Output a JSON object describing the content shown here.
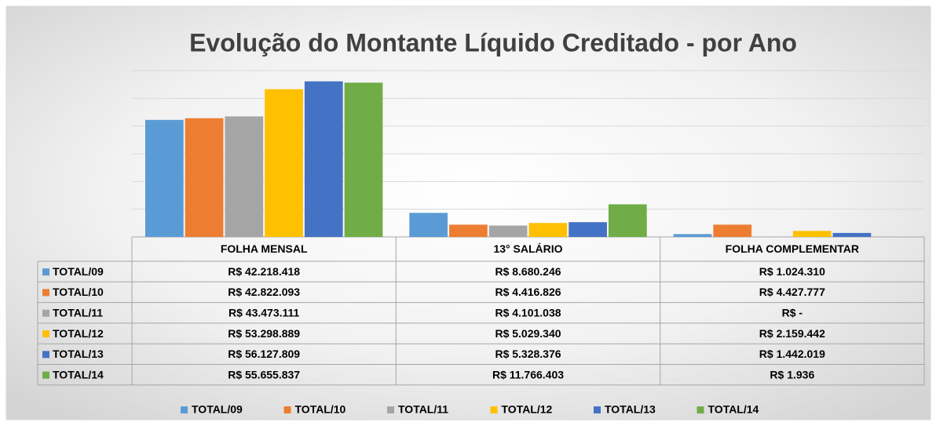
{
  "chart_data": {
    "type": "bar",
    "title": "Evolução do Montante Líquido Creditado - por Ano",
    "categories": [
      "FOLHA MENSAL",
      "13° SALÁRIO",
      "FOLHA COMPLEMENTAR"
    ],
    "ylim": [
      0,
      60000000
    ],
    "yticks": [
      0,
      10000000,
      20000000,
      30000000,
      40000000,
      50000000,
      60000000
    ],
    "grid": true,
    "legend": "bottom",
    "series": [
      {
        "name": "TOTAL/09",
        "color": "#5b9bd5",
        "values": [
          42218418,
          8680246,
          1024310
        ],
        "value_labels": [
          "R$ 42.218.418",
          "R$ 8.680.246",
          "R$ 1.024.310"
        ]
      },
      {
        "name": "TOTAL/10",
        "color": "#ed7d31",
        "values": [
          42822093,
          4416826,
          4427777
        ],
        "value_labels": [
          "R$ 42.822.093",
          "R$ 4.416.826",
          "R$ 4.427.777"
        ]
      },
      {
        "name": "TOTAL/11",
        "color": "#a5a5a5",
        "values": [
          43473111,
          4101038,
          0
        ],
        "value_labels": [
          "R$ 43.473.111",
          "R$ 4.101.038",
          "R$ -"
        ]
      },
      {
        "name": "TOTAL/12",
        "color": "#ffc000",
        "values": [
          53298889,
          5029340,
          2159442
        ],
        "value_labels": [
          "R$ 53.298.889",
          "R$ 5.029.340",
          "R$ 2.159.442"
        ]
      },
      {
        "name": "TOTAL/13",
        "color": "#4472c4",
        "values": [
          56127809,
          5328376,
          1442019
        ],
        "value_labels": [
          "R$ 56.127.809",
          "R$ 5.328.376",
          "R$ 1.442.019"
        ]
      },
      {
        "name": "TOTAL/14",
        "color": "#70ad47",
        "values": [
          55655837,
          11766403,
          1936
        ],
        "value_labels": [
          "R$ 55.655.837",
          "R$ 11.766.403",
          "R$ 1.936"
        ]
      }
    ]
  }
}
